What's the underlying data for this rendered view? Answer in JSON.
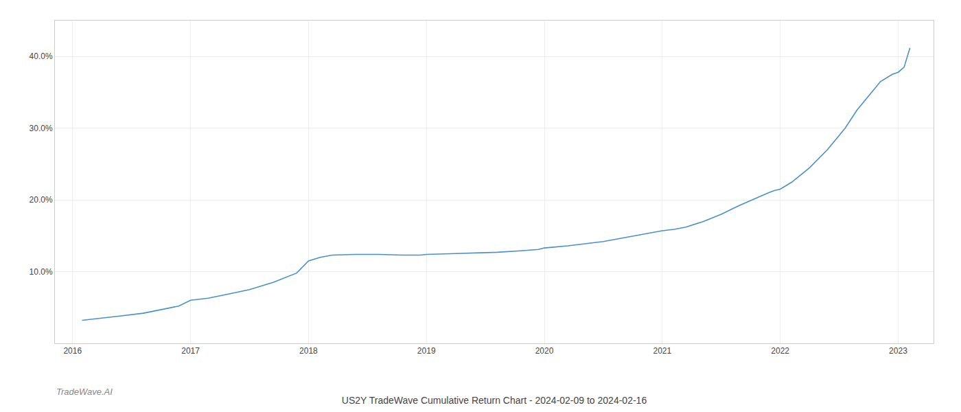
{
  "chart_data": {
    "type": "line",
    "title": "US2Y TradeWave Cumulative Return Chart - 2024-02-09 to 2024-02-16",
    "annotations": [
      {
        "text": "TradeWave.AI"
      }
    ],
    "x": [
      2016.08,
      2016.2,
      2016.4,
      2016.6,
      2016.9,
      2017.0,
      2017.15,
      2017.3,
      2017.5,
      2017.7,
      2017.9,
      2018.0,
      2018.1,
      2018.2,
      2018.4,
      2018.6,
      2018.8,
      2018.95,
      2019.0,
      2019.2,
      2019.4,
      2019.6,
      2019.8,
      2019.95,
      2020.0,
      2020.2,
      2020.5,
      2020.7,
      2020.85,
      2020.95,
      2021.0,
      2021.1,
      2021.2,
      2021.35,
      2021.5,
      2021.65,
      2021.8,
      2021.9,
      2021.95,
      2022.0,
      2022.1,
      2022.25,
      2022.4,
      2022.55,
      2022.65,
      2022.75,
      2022.85,
      2022.95,
      2023.0,
      2023.05,
      2023.1
    ],
    "values": [
      3.2,
      3.4,
      3.8,
      4.2,
      5.2,
      6.0,
      6.3,
      6.8,
      7.5,
      8.5,
      9.8,
      11.5,
      12.0,
      12.3,
      12.4,
      12.4,
      12.3,
      12.3,
      12.4,
      12.5,
      12.6,
      12.7,
      12.9,
      13.1,
      13.3,
      13.6,
      14.2,
      14.8,
      15.3,
      15.6,
      15.7,
      15.9,
      16.2,
      17.0,
      18.0,
      19.2,
      20.3,
      21.0,
      21.3,
      21.5,
      22.5,
      24.5,
      27.0,
      30.0,
      32.5,
      34.5,
      36.5,
      37.5,
      37.8,
      38.5,
      41.2
    ],
    "color": "#4a90c4",
    "xlim": [
      2015.85,
      2023.3
    ],
    "ylim": [
      0,
      45
    ],
    "xticks": [
      2016,
      2017,
      2018,
      2019,
      2020,
      2021,
      2022,
      2023
    ],
    "yticks": [
      {
        "value": 10.0,
        "label": "10.0%"
      },
      {
        "value": 20.0,
        "label": "20.0%"
      },
      {
        "value": 30.0,
        "label": "30.0%"
      },
      {
        "value": 40.0,
        "label": "40.0%"
      }
    ],
    "grid": true
  }
}
